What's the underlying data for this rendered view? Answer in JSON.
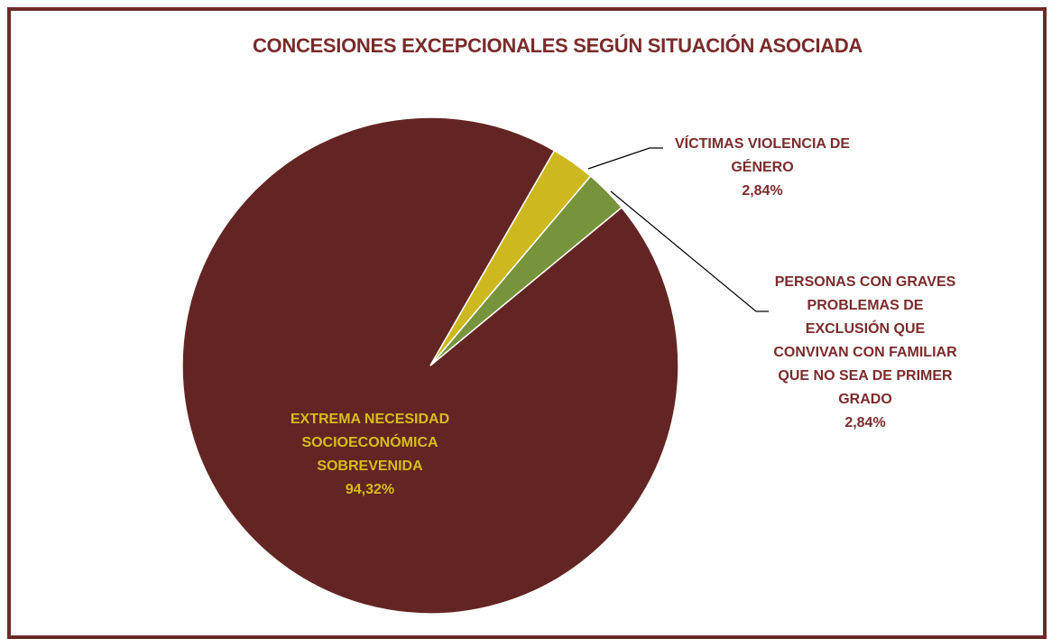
{
  "chart_data": {
    "type": "pie",
    "title": "CONCESIONES EXCEPCIONALES SEGÚN SITUACIÓN ASOCIADA",
    "categories": [
      "VÍCTIMAS VIOLENCIA DE GÉNERO",
      "PERSONAS CON GRAVES PROBLEMAS DE EXCLUSIÓN QUE CONVIVAN CON FAMILIAR QUE NO SEA DE PRIMER GRADO",
      "EXTREMA NECESIDAD SOCIOECONÓMICA SOBREVENIDA"
    ],
    "values": [
      2.84,
      2.84,
      94.32
    ],
    "value_labels": [
      "2,84%",
      "2,84%",
      "94,32%"
    ],
    "colors": [
      "#cdb81f",
      "#77933c",
      "#632523"
    ]
  }
}
